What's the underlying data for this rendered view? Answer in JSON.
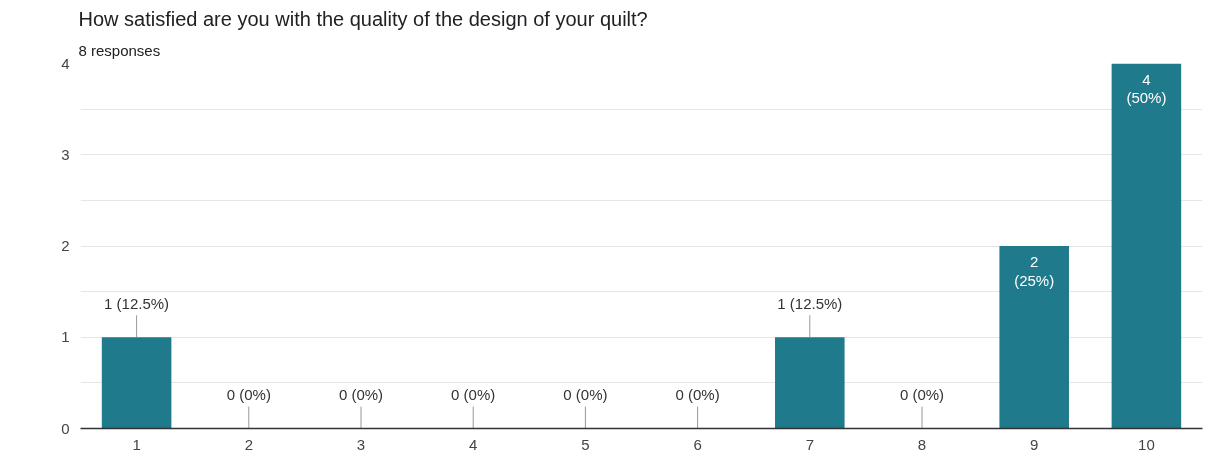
{
  "chart_data": {
    "type": "bar",
    "title": "How satisfied are you with the quality of the design of your quilt?",
    "subtitle": "8 responses",
    "categories": [
      "1",
      "2",
      "3",
      "4",
      "5",
      "6",
      "7",
      "8",
      "9",
      "10"
    ],
    "values": [
      1,
      0,
      0,
      0,
      0,
      0,
      1,
      0,
      2,
      4
    ],
    "value_labels": [
      "1 (12.5%)",
      "0 (0%)",
      "0 (0%)",
      "0 (0%)",
      "0 (0%)",
      "0 (0%)",
      "1 (12.5%)",
      "0 (0%)",
      "2 (25%)",
      "4 (50%)"
    ],
    "color": "#1f7a8c",
    "ylim": [
      0,
      4
    ],
    "yticks": [
      0,
      {
        "value": 0.5,
        "label": null
      },
      1,
      {
        "value": 1.5,
        "label": null
      },
      2,
      {
        "value": 2.5,
        "label": null
      },
      3,
      {
        "value": 3.5,
        "label": null
      },
      4
    ],
    "grid": "y"
  }
}
